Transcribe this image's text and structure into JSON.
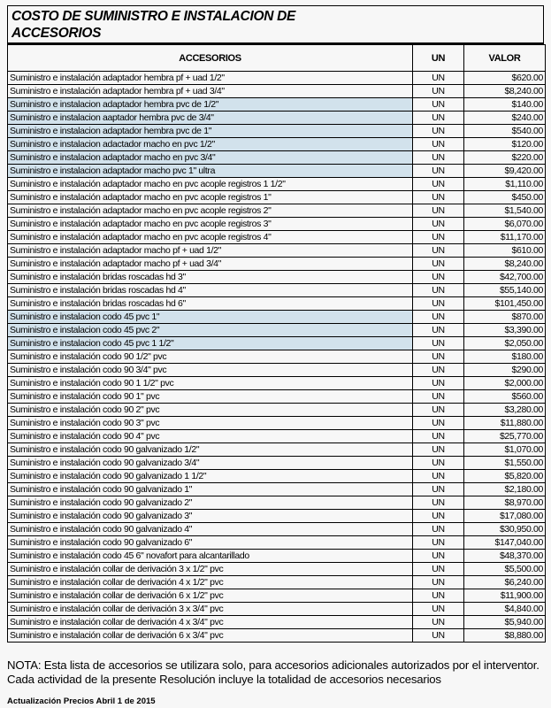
{
  "title": {
    "line1": "COSTO DE SUMINISTRO E INSTALACION DE",
    "line2": "ACCESORIOS"
  },
  "headers": {
    "item": "ACCESORIOS",
    "unit": "UN",
    "value": "VALOR"
  },
  "highlight_color": "#d2e2ec",
  "rows": [
    {
      "desc": "Suministro e instalación adaptador hembra pf + uad 1/2\"",
      "un": "UN",
      "val": "$620.00",
      "hl": false
    },
    {
      "desc": "Suministro e instalación adaptador hembra pf + uad 3/4\"",
      "un": "UN",
      "val": "$8,240.00",
      "hl": false
    },
    {
      "desc": "Suministro e instalacion adaptador hembra pvc de 1/2\"",
      "un": "UN",
      "val": "$140.00",
      "hl": true
    },
    {
      "desc": "Suministro e instalacion aaptador hembra pvc de 3/4\"",
      "un": "UN",
      "val": "$240.00",
      "hl": true
    },
    {
      "desc": "Suministro e instalacion adaptador hembra pvc de 1\"",
      "un": "UN",
      "val": "$540.00",
      "hl": true
    },
    {
      "desc": "Suministro e instalacion adactador macho en pvc  1/2\"",
      "un": "UN",
      "val": "$120.00",
      "hl": true
    },
    {
      "desc": "Suministro e instalacion adaptador macho en pvc  3/4\"",
      "un": "UN",
      "val": "$220.00",
      "hl": true
    },
    {
      "desc": "Suministro e instalacion adaptador macho pvc  1\" ultra",
      "un": "UN",
      "val": "$9,420.00",
      "hl": true
    },
    {
      "desc": "Suministro e instalación adaptador macho en pvc acople registros 1 1/2\"",
      "un": "UN",
      "val": "$1,110.00",
      "hl": false
    },
    {
      "desc": "Suministro e instalación adaptador macho en pvc acople registros 1\"",
      "un": "UN",
      "val": "$450.00",
      "hl": false
    },
    {
      "desc": "Suministro e instalación adaptador macho en pvc acople registros 2\"",
      "un": "UN",
      "val": "$1,540.00",
      "hl": false
    },
    {
      "desc": "Suministro e instalación adaptador macho en pvc acople registros 3\"",
      "un": "UN",
      "val": "$6,070.00",
      "hl": false
    },
    {
      "desc": "Suministro e instalación adaptador macho en pvc acople registros 4\"",
      "un": "UN",
      "val": "$11,170.00",
      "hl": false
    },
    {
      "desc": "Suministro e instalación adaptador macho pf + uad 1/2\"",
      "un": "UN",
      "val": "$610.00",
      "hl": false
    },
    {
      "desc": "Suministro e instalación adaptador macho pf + uad 3/4\"",
      "un": "UN",
      "val": "$8,240.00",
      "hl": false
    },
    {
      "desc": "Suministro e instalación bridas roscadas hd 3\"",
      "un": "UN",
      "val": "$42,700.00",
      "hl": false
    },
    {
      "desc": "Suministro e instalación bridas roscadas hd 4\"",
      "un": "UN",
      "val": "$55,140.00",
      "hl": false
    },
    {
      "desc": "Suministro e instalación bridas roscadas hd 6\"",
      "un": "UN",
      "val": "$101,450.00",
      "hl": false
    },
    {
      "desc": "Suministro e instalacion codo 45 pvc 1\"",
      "un": "UN",
      "val": "$870.00",
      "hl": true
    },
    {
      "desc": "Suministro e instalacion codo 45  pvc 2\"",
      "un": "UN",
      "val": "$3,390.00",
      "hl": true
    },
    {
      "desc": "Suministro e instalacion codo 45  pvc 1 1/2\"",
      "un": "UN",
      "val": "$2,050.00",
      "hl": true
    },
    {
      "desc": "Suministro e instalación codo 90 1/2\" pvc",
      "un": "UN",
      "val": "$180.00",
      "hl": false
    },
    {
      "desc": "Suministro e instalación codo 90 3/4\" pvc",
      "un": "UN",
      "val": "$290.00",
      "hl": false
    },
    {
      "desc": "Suministro e instalación codo 90 1 1/2\" pvc",
      "un": "UN",
      "val": "$2,000.00",
      "hl": false
    },
    {
      "desc": "Suministro e instalación codo 90 1\" pvc",
      "un": "UN",
      "val": "$560.00",
      "hl": false
    },
    {
      "desc": "Suministro e instalación codo 90 2\" pvc",
      "un": "UN",
      "val": "$3,280.00",
      "hl": false
    },
    {
      "desc": "Suministro e instalación codo 90 3\" pvc",
      "un": "UN",
      "val": "$11,880.00",
      "hl": false
    },
    {
      "desc": "Suministro e instalación codo 90 4\" pvc",
      "un": "UN",
      "val": "$25,770.00",
      "hl": false
    },
    {
      "desc": "Suministro e instalación codo 90 galvanizado 1/2\"",
      "un": "UN",
      "val": "$1,070.00",
      "hl": false
    },
    {
      "desc": "Suministro e instalación codo 90 galvanizado 3/4\"",
      "un": "UN",
      "val": "$1,550.00",
      "hl": false
    },
    {
      "desc": "Suministro e instalación codo 90 galvanizado 1 1/2\"",
      "un": "UN",
      "val": "$5,820.00",
      "hl": false
    },
    {
      "desc": "Suministro e instalación codo 90 galvanizado 1\"",
      "un": "UN",
      "val": "$2,180.00",
      "hl": false
    },
    {
      "desc": "Suministro e instalación codo 90 galvanizado 2\"",
      "un": "UN",
      "val": "$8,970.00",
      "hl": false
    },
    {
      "desc": "Suministro e instalación codo 90 galvanizado 3\"",
      "un": "UN",
      "val": "$17,080.00",
      "hl": false
    },
    {
      "desc": "Suministro e instalación codo 90 galvanizado 4\"",
      "un": "UN",
      "val": "$30,950.00",
      "hl": false
    },
    {
      "desc": "Suministro e instalación codo 90 galvanizado 6\"",
      "un": "UN",
      "val": "$147,040.00",
      "hl": false
    },
    {
      "desc": "Suministro e instalación codo 45 6\" novafort para alcantarillado",
      "un": "UN",
      "val": "$48,370.00",
      "hl": false
    },
    {
      "desc": "Suministro e instalación collar de derivación 3 x 1/2\" pvc",
      "un": "UN",
      "val": "$5,500.00",
      "hl": false
    },
    {
      "desc": "Suministro e instalación collar de derivación 4 x 1/2\" pvc",
      "un": "UN",
      "val": "$6,240.00",
      "hl": false
    },
    {
      "desc": "Suministro e instalación collar de derivación 6 x 1/2\" pvc",
      "un": "UN",
      "val": "$11,900.00",
      "hl": false
    },
    {
      "desc": "Suministro e instalación collar de derivación 3 x 3/4\" pvc",
      "un": "UN",
      "val": "$4,840.00",
      "hl": false
    },
    {
      "desc": "Suministro e instalación collar de derivación 4 x 3/4\" pvc",
      "un": "UN",
      "val": "$5,940.00",
      "hl": false
    },
    {
      "desc": "Suministro e instalación collar de derivación 6 x 3/4\" pvc",
      "un": "UN",
      "val": "$8,880.00",
      "hl": false
    }
  ],
  "note": "NOTA: Esta lista de accesorios se utilizara solo, para accesorios adicionales autorizados por el interventor. Cada actividad de la presente Resolución incluye la totalidad de accesorios necesarios",
  "update": "Actualización Precios Abril 1 de 2015"
}
